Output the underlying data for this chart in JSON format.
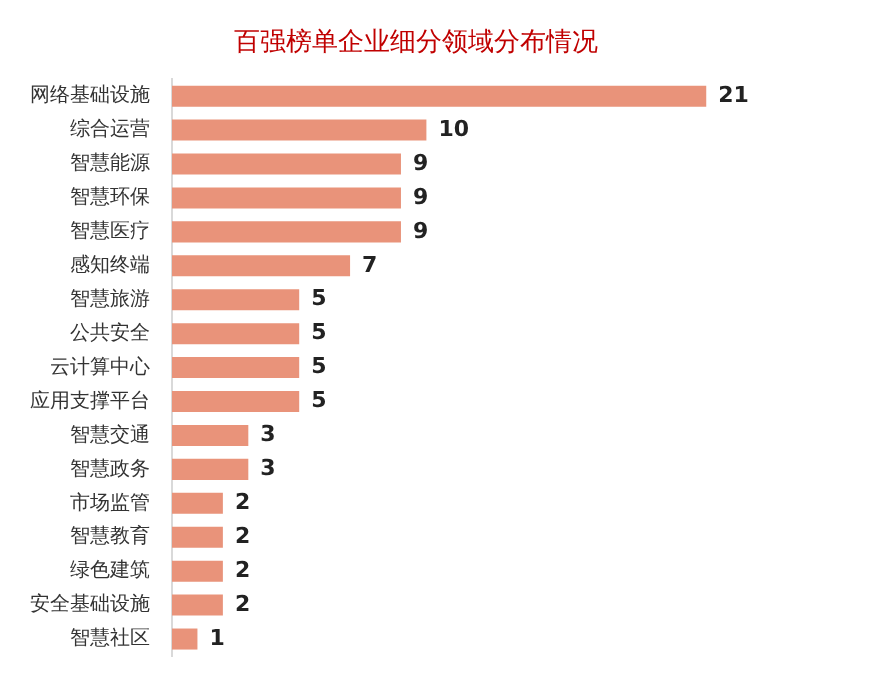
{
  "chart_data": {
    "type": "bar",
    "orientation": "horizontal",
    "title": "百强榜单企业细分领域分布情况",
    "categories": [
      "网络基础设施",
      "综合运营",
      "智慧能源",
      "智慧环保",
      "智慧医疗",
      "感知终端",
      "智慧旅游",
      "公共安全",
      "云计算中心",
      "应用支撑平台",
      "智慧交通",
      "智慧政务",
      "市场监管",
      "智慧教育",
      "绿色建筑",
      "安全基础设施",
      "智慧社区"
    ],
    "values": [
      21,
      10,
      9,
      9,
      9,
      7,
      5,
      5,
      5,
      5,
      3,
      3,
      2,
      2,
      2,
      2,
      1
    ],
    "color": "#e9937a",
    "data_labels": true,
    "tick_labels": "y"
  }
}
